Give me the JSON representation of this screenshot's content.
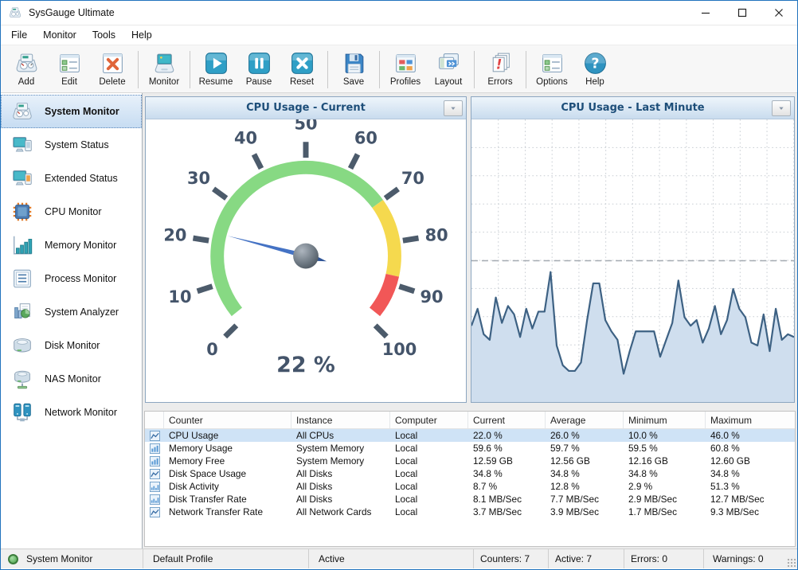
{
  "window": {
    "title": "SysGauge Ultimate",
    "controls": [
      "minimize",
      "maximize",
      "close"
    ]
  },
  "menu": {
    "items": [
      "File",
      "Monitor",
      "Tools",
      "Help"
    ]
  },
  "toolbar": {
    "groups": [
      [
        {
          "label": "Add",
          "icon": "add"
        },
        {
          "label": "Edit",
          "icon": "edit"
        },
        {
          "label": "Delete",
          "icon": "delete"
        }
      ],
      [
        {
          "label": "Monitor",
          "icon": "monitor"
        }
      ],
      [
        {
          "label": "Resume",
          "icon": "resume"
        },
        {
          "label": "Pause",
          "icon": "pause"
        },
        {
          "label": "Reset",
          "icon": "reset"
        }
      ],
      [
        {
          "label": "Save",
          "icon": "save"
        }
      ],
      [
        {
          "label": "Profiles",
          "icon": "profiles"
        },
        {
          "label": "Layout",
          "icon": "layout"
        }
      ],
      [
        {
          "label": "Errors",
          "icon": "errors"
        }
      ],
      [
        {
          "label": "Options",
          "icon": "options"
        },
        {
          "label": "Help",
          "icon": "help"
        }
      ]
    ]
  },
  "sidebar": {
    "items": [
      {
        "label": "System Monitor",
        "icon": "system-monitor",
        "selected": true
      },
      {
        "label": "System Status",
        "icon": "system-status",
        "selected": false
      },
      {
        "label": "Extended Status",
        "icon": "extended-status",
        "selected": false
      },
      {
        "label": "CPU Monitor",
        "icon": "cpu-monitor",
        "selected": false
      },
      {
        "label": "Memory Monitor",
        "icon": "memory-monitor",
        "selected": false
      },
      {
        "label": "Process Monitor",
        "icon": "process-monitor",
        "selected": false
      },
      {
        "label": "System Analyzer",
        "icon": "system-analyzer",
        "selected": false
      },
      {
        "label": "Disk Monitor",
        "icon": "disk-monitor",
        "selected": false
      },
      {
        "label": "NAS Monitor",
        "icon": "nas-monitor",
        "selected": false
      },
      {
        "label": "Network Monitor",
        "icon": "network-monitor",
        "selected": false
      }
    ]
  },
  "panels": {
    "gauge": {
      "title": "CPU Usage - Current"
    },
    "chart": {
      "title": "CPU Usage - Last Minute"
    }
  },
  "chart_data": [
    {
      "type": "gauge",
      "title": "CPU Usage - Current",
      "value": 22,
      "unit": "%",
      "label": "22 %",
      "min": 0,
      "max": 100,
      "tick_interval": 10,
      "zones": [
        {
          "from": 0,
          "to": 70,
          "color": "#87d983"
        },
        {
          "from": 70,
          "to": 88,
          "color": "#f5d94e"
        },
        {
          "from": 88,
          "to": 100,
          "color": "#f15757"
        }
      ]
    },
    {
      "type": "area",
      "title": "CPU Usage - Last Minute",
      "ylim": [
        0,
        100
      ],
      "unit": "%",
      "grid": true,
      "threshold_line": 50,
      "line_color": "#3d6183",
      "fill_color": "#cfdeee",
      "values": [
        27,
        33,
        24,
        22,
        37,
        28,
        34,
        31,
        23,
        33,
        26,
        32,
        32,
        46,
        20,
        13,
        11,
        11,
        14,
        29,
        42,
        42,
        29,
        25,
        22,
        10,
        18,
        25,
        25,
        25,
        25,
        16,
        22,
        28,
        43,
        30,
        27,
        29,
        21,
        26,
        34,
        24,
        29,
        40,
        33,
        30,
        21,
        20,
        31,
        18,
        33,
        22,
        24,
        23
      ]
    }
  ],
  "table": {
    "columns": [
      "Counter",
      "Instance",
      "Computer",
      "Current",
      "Average",
      "Minimum",
      "Maximum"
    ],
    "rows": [
      {
        "icon": "chart-line",
        "counter": "CPU Usage",
        "instance": "All CPUs",
        "computer": "Local",
        "current": "22.0 %",
        "average": "26.0 %",
        "minimum": "10.0 %",
        "maximum": "46.0 %",
        "selected": true
      },
      {
        "icon": "chart-bars",
        "counter": "Memory Usage",
        "instance": "System Memory",
        "computer": "Local",
        "current": "59.6 %",
        "average": "59.7 %",
        "minimum": "59.5 %",
        "maximum": "60.8 %",
        "selected": false
      },
      {
        "icon": "chart-bars",
        "counter": "Memory Free",
        "instance": "System Memory",
        "computer": "Local",
        "current": "12.59 GB",
        "average": "12.56 GB",
        "minimum": "12.16 GB",
        "maximum": "12.60 GB",
        "selected": false
      },
      {
        "icon": "chart-line",
        "counter": "Disk Space Usage",
        "instance": "All Disks",
        "computer": "Local",
        "current": "34.8 %",
        "average": "34.8 %",
        "minimum": "34.8 %",
        "maximum": "34.8 %",
        "selected": false
      },
      {
        "icon": "chart-cols",
        "counter": "Disk Activity",
        "instance": "All Disks",
        "computer": "Local",
        "current": "8.7 %",
        "average": "12.8 %",
        "minimum": "2.9 %",
        "maximum": "51.3 %",
        "selected": false
      },
      {
        "icon": "chart-cols",
        "counter": "Disk Transfer Rate",
        "instance": "All Disks",
        "computer": "Local",
        "current": "8.1 MB/Sec",
        "average": "7.7 MB/Sec",
        "minimum": "2.9 MB/Sec",
        "maximum": "12.7 MB/Sec",
        "selected": false
      },
      {
        "icon": "chart-line",
        "counter": "Network Transfer Rate",
        "instance": "All Network Cards",
        "computer": "Local",
        "current": "3.7 MB/Sec",
        "average": "3.9 MB/Sec",
        "minimum": "1.7 MB/Sec",
        "maximum": "9.3 MB/Sec",
        "selected": false
      }
    ]
  },
  "statusbar": {
    "monitor": "System Monitor",
    "profile": "Default Profile",
    "state": "Active",
    "counters": "Counters: 7",
    "active": "Active: 7",
    "errors": "Errors: 0",
    "warnings": "Warnings: 0"
  },
  "colors": {
    "accent": "#2f93c0",
    "panel_header_text": "#1d4e79",
    "gauge_green": "#87d983",
    "gauge_yellow": "#f5d94e",
    "gauge_red": "#f15757",
    "needle": "#4472c4",
    "chart_line": "#3d6183",
    "chart_fill": "#cfdeee",
    "selection": "#cfe3f6"
  }
}
